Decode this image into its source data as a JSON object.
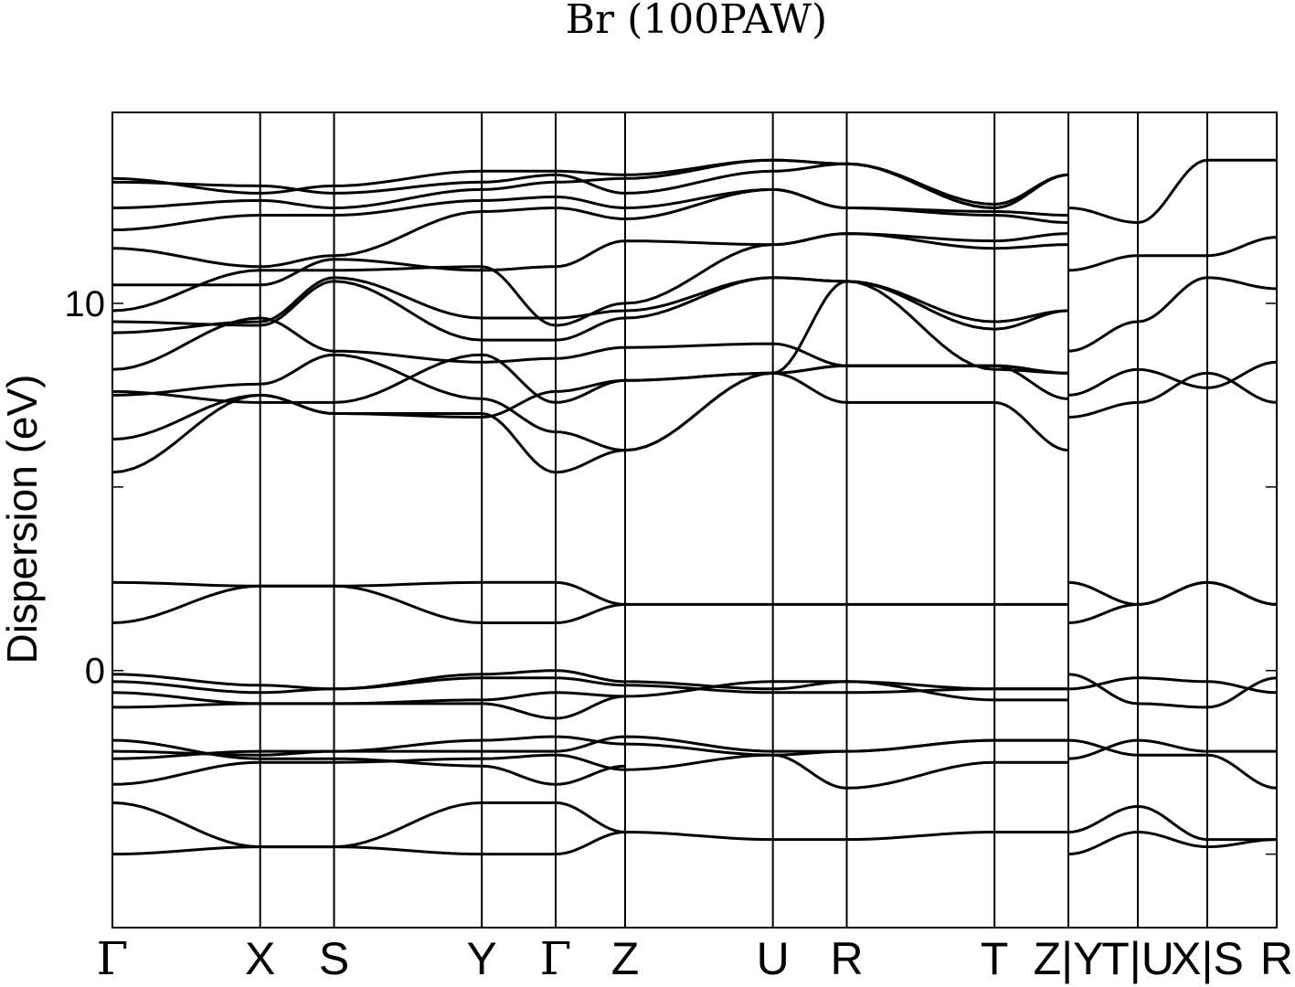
{
  "chart_data": {
    "type": "line",
    "title": "Br (100PAW)",
    "ylabel": "Dispersion (eV)",
    "xlabel": "",
    "ylim": [
      -7,
      15.2
    ],
    "yticks": [
      -5,
      0,
      5,
      10
    ],
    "ytick_labels": [
      "",
      "0",
      "",
      "10"
    ],
    "grid": false,
    "legend": "none",
    "line_color": "#000000",
    "kpath_labels": [
      "Γ",
      "X",
      "S",
      "Y",
      "Γ",
      "Z",
      "U",
      "R",
      "T",
      "Z|Y",
      "T|U",
      "X|S",
      "R"
    ],
    "kpath_positions": [
      0,
      1.0,
      1.5,
      2.5,
      3.0,
      3.47,
      4.47,
      4.97,
      5.97,
      6.47,
      6.94,
      7.41,
      7.88
    ],
    "series": [
      {
        "x": [
          0,
          1.0,
          1.5,
          2.5,
          3.0,
          3.47,
          4.47,
          4.97,
          5.97,
          6.47
        ],
        "y": [
          -5.0,
          -4.8,
          -4.8,
          -5.0,
          -5.0,
          -4.4,
          -4.6,
          -4.6,
          -4.4,
          -4.4
        ]
      },
      {
        "x": [
          0,
          1.0,
          1.5,
          2.5,
          3.0,
          3.47
        ],
        "y": [
          -3.6,
          -4.8,
          -4.8,
          -3.6,
          -3.6,
          -4.4
        ]
      },
      {
        "x": [
          0,
          1.0,
          1.5,
          2.5,
          3.0,
          3.47,
          4.47,
          4.97,
          5.97,
          6.47
        ],
        "y": [
          -2.2,
          -2.3,
          -2.2,
          -2.2,
          -2.2,
          -1.8,
          -2.2,
          -2.2,
          -1.9,
          -1.9
        ]
      },
      {
        "x": [
          0,
          1.0,
          1.5,
          2.5,
          3.0,
          3.47,
          4.47,
          4.97,
          5.97,
          6.47
        ],
        "y": [
          -2.4,
          -2.2,
          -2.2,
          -1.9,
          -1.8,
          -2.0,
          -2.3,
          -3.2,
          -2.5,
          -2.5
        ]
      },
      {
        "x": [
          0,
          1.0,
          1.5,
          2.5,
          3.0,
          3.47,
          4.47,
          4.97,
          5.97,
          6.47
        ],
        "y": [
          -3.1,
          -2.5,
          -2.5,
          -2.4,
          -2.3,
          -2.7,
          -2.3,
          -2.2,
          -1.9,
          -1.9
        ]
      },
      {
        "x": [
          0,
          1.0,
          1.5,
          2.5,
          3.0,
          3.47
        ],
        "y": [
          -1.9,
          -2.4,
          -2.4,
          -2.6,
          -3.1,
          -2.6
        ]
      },
      {
        "x": [
          0,
          1.0,
          1.5,
          2.5,
          3.0,
          3.47,
          4.47,
          4.97,
          5.97,
          6.47
        ],
        "y": [
          -0.1,
          -0.4,
          -0.5,
          -0.2,
          -0.2,
          -0.4,
          -0.6,
          -0.6,
          -0.5,
          -0.5
        ]
      },
      {
        "x": [
          0,
          1.0,
          1.5,
          2.5,
          3.0,
          3.47,
          4.47,
          4.97,
          5.97,
          6.47
        ],
        "y": [
          -0.3,
          -0.6,
          -0.5,
          -0.1,
          0.0,
          -0.3,
          -0.5,
          -0.3,
          -0.5,
          -0.5
        ]
      },
      {
        "x": [
          0,
          1.0,
          1.5,
          2.5,
          3.0,
          3.47,
          4.47,
          4.97,
          5.97,
          6.47
        ],
        "y": [
          -0.6,
          -0.9,
          -0.9,
          -0.8,
          -0.6,
          -0.7,
          -0.3,
          -0.3,
          -0.8,
          -0.8
        ]
      },
      {
        "x": [
          0,
          1.0,
          1.5,
          2.5,
          3.0,
          3.47
        ],
        "y": [
          -1.0,
          -0.9,
          -0.9,
          -0.9,
          -1.3,
          -0.7
        ]
      },
      {
        "x": [
          0,
          1.0,
          1.5,
          2.5,
          3.0,
          3.47,
          4.47,
          4.97,
          5.97,
          6.47
        ],
        "y": [
          2.4,
          2.3,
          2.3,
          2.4,
          2.4,
          1.8,
          1.8,
          1.8,
          1.8,
          1.8
        ]
      },
      {
        "x": [
          0,
          1.0,
          1.5,
          2.5,
          3.0,
          3.47
        ],
        "y": [
          1.3,
          2.3,
          2.3,
          1.3,
          1.3,
          1.8
        ]
      },
      {
        "x": [
          0,
          1.0,
          1.5,
          2.5,
          3.0,
          3.47,
          4.47,
          4.97,
          5.97,
          6.47
        ],
        "y": [
          5.4,
          7.5,
          7.0,
          7.0,
          5.4,
          6.0,
          8.1,
          7.3,
          7.3,
          6.0
        ]
      },
      {
        "x": [
          0,
          1.0,
          1.5,
          2.5,
          3.0,
          3.47,
          4.47,
          4.97,
          5.97,
          6.47
        ],
        "y": [
          6.3,
          7.5,
          7.0,
          6.9,
          7.6,
          7.9,
          8.1,
          8.3,
          8.3,
          7.4
        ]
      },
      {
        "x": [
          0,
          1.0,
          1.5,
          2.5,
          3.0,
          3.47,
          4.47,
          4.97,
          5.97,
          6.47
        ],
        "y": [
          7.5,
          7.8,
          8.6,
          7.4,
          6.5,
          6.0,
          8.1,
          8.3,
          8.3,
          8.1
        ]
      },
      {
        "x": [
          0,
          1.0,
          1.5,
          2.5,
          3.0,
          3.47,
          4.47,
          4.97,
          5.97,
          6.47
        ],
        "y": [
          7.6,
          7.3,
          7.3,
          8.6,
          7.3,
          7.9,
          8.1,
          10.6,
          8.2,
          8.1
        ]
      },
      {
        "x": [
          0,
          1.0,
          1.5,
          2.5,
          3.0,
          3.47,
          4.47,
          4.97,
          5.97,
          6.47
        ],
        "y": [
          8.2,
          9.6,
          8.7,
          8.4,
          8.5,
          8.8,
          8.9,
          8.3,
          8.3,
          8.1
        ]
      },
      {
        "x": [
          0,
          1.0,
          1.5,
          2.5,
          3.0,
          3.47,
          4.47,
          4.97,
          5.97,
          6.47
        ],
        "y": [
          9.2,
          9.5,
          10.7,
          9.6,
          9.6,
          9.8,
          10.7,
          10.6,
          9.3,
          9.8
        ]
      },
      {
        "x": [
          0,
          1.0,
          1.5,
          2.5,
          3.0,
          3.47,
          4.47,
          4.97,
          5.97,
          6.47
        ],
        "y": [
          9.5,
          9.4,
          10.6,
          9.0,
          9.0,
          9.6,
          10.7,
          10.6,
          9.5,
          9.8
        ]
      },
      {
        "x": [
          0,
          1.0,
          1.5,
          2.5,
          3.0,
          3.47,
          4.47,
          4.97,
          5.97,
          6.47
        ],
        "y": [
          9.8,
          10.9,
          10.9,
          11.0,
          9.4,
          10.0,
          11.6,
          11.9,
          11.5,
          11.6
        ]
      },
      {
        "x": [
          0,
          1.0,
          1.5,
          2.5,
          3.0,
          3.47,
          4.47,
          4.97,
          5.97,
          6.47
        ],
        "y": [
          10.5,
          10.5,
          11.2,
          10.9,
          11.0,
          11.7,
          11.6,
          11.9,
          11.7,
          11.9
        ]
      },
      {
        "x": [
          0,
          1.0,
          1.5,
          2.5,
          3.0,
          3.47,
          4.47,
          4.97,
          5.97,
          6.47
        ],
        "y": [
          11.5,
          11.0,
          11.3,
          12.5,
          12.6,
          12.3,
          13.1,
          12.6,
          12.4,
          12.2
        ]
      },
      {
        "x": [
          0,
          1.0,
          1.5,
          2.5,
          3.0,
          3.47,
          4.47,
          4.97,
          5.97,
          6.47
        ],
        "y": [
          12.0,
          12.4,
          12.4,
          12.8,
          12.9,
          12.6,
          13.1,
          12.6,
          12.5,
          12.4
        ]
      },
      {
        "x": [
          0,
          1.0,
          1.5,
          2.5,
          3.0,
          3.47,
          4.47,
          4.97,
          5.97,
          6.47
        ],
        "y": [
          12.6,
          12.8,
          12.6,
          13.1,
          13.3,
          13.4,
          13.9,
          13.8,
          12.6,
          13.5
        ]
      },
      {
        "x": [
          0,
          1.0,
          1.5,
          2.5,
          3.0,
          3.47,
          4.47,
          4.97,
          5.97,
          6.47
        ],
        "y": [
          13.3,
          13.2,
          13.0,
          13.3,
          13.5,
          13.0,
          13.6,
          13.8,
          12.6,
          13.5
        ]
      },
      {
        "x": [
          0,
          1.0,
          1.5,
          2.5,
          3.0,
          3.47,
          4.47,
          4.97,
          5.97,
          6.47
        ],
        "y": [
          13.4,
          13.0,
          13.2,
          13.6,
          13.6,
          13.5,
          13.9,
          13.8,
          12.7,
          13.5
        ]
      },
      {
        "x": [
          6.47,
          6.94,
          7.41,
          7.88
        ],
        "y": [
          -4.4,
          -3.7,
          -4.6,
          -4.6
        ]
      },
      {
        "x": [
          6.47,
          6.94,
          7.41,
          7.88
        ],
        "y": [
          -5.0,
          -4.4,
          -4.8,
          -4.6
        ]
      },
      {
        "x": [
          6.47,
          6.94,
          7.41,
          7.88
        ],
        "y": [
          -1.9,
          -2.3,
          -2.3,
          -3.2
        ]
      },
      {
        "x": [
          6.47,
          6.94,
          7.41,
          7.88
        ],
        "y": [
          -2.4,
          -1.9,
          -2.2,
          -2.2
        ]
      },
      {
        "x": [
          6.47,
          6.94,
          7.41,
          7.88
        ],
        "y": [
          -0.1,
          -0.9,
          -1.0,
          -0.2
        ]
      },
      {
        "x": [
          6.47,
          6.94,
          7.41,
          7.88
        ],
        "y": [
          -0.5,
          -0.2,
          -0.3,
          -0.6
        ]
      },
      {
        "x": [
          6.47,
          6.94,
          7.41,
          7.88
        ],
        "y": [
          2.4,
          1.8,
          2.4,
          1.8
        ]
      },
      {
        "x": [
          6.47,
          6.94,
          7.41,
          7.88
        ],
        "y": [
          1.3,
          1.8,
          2.4,
          1.8
        ]
      },
      {
        "x": [
          6.47,
          6.94,
          7.41,
          7.88
        ],
        "y": [
          6.9,
          7.3,
          8.1,
          7.3
        ]
      },
      {
        "x": [
          6.47,
          6.94,
          7.41,
          7.88
        ],
        "y": [
          7.5,
          8.2,
          7.7,
          8.4
        ]
      },
      {
        "x": [
          6.47,
          6.94,
          7.41,
          7.88
        ],
        "y": [
          8.7,
          9.5,
          10.7,
          10.4
        ]
      },
      {
        "x": [
          6.47,
          6.94,
          7.41,
          7.88
        ],
        "y": [
          10.9,
          11.3,
          11.3,
          11.8
        ]
      },
      {
        "x": [
          6.47,
          6.94,
          7.41,
          7.88
        ],
        "y": [
          12.6,
          12.2,
          13.9,
          13.9
        ]
      }
    ]
  }
}
